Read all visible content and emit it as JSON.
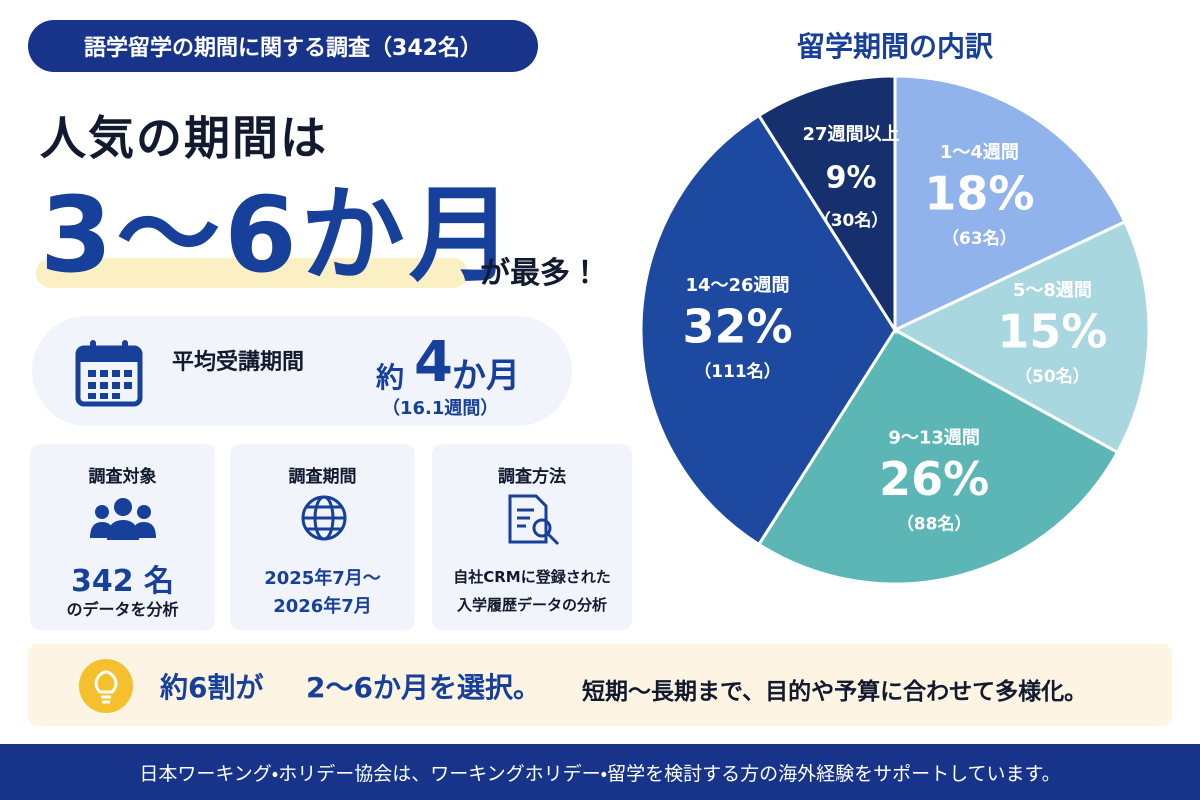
{
  "header": {
    "badge": "語学留学の期間に関する調査（342名）",
    "headline": "人気の期間は",
    "highlight": "3〜6か月",
    "highlight_suffix": "が最多！"
  },
  "average": {
    "label": "平均受講期間",
    "prefix": "約",
    "number": "4",
    "unit": "か月",
    "weeks": "（16.1週間）"
  },
  "cards": [
    {
      "title": "調査対象",
      "line1": "342 名",
      "line2": "のデータを分析"
    },
    {
      "title": "調査期間",
      "line1": "2025年7月〜",
      "line2": "2026年7月"
    },
    {
      "title": "調査方法",
      "line1": "自社CRMに登録された",
      "line2": "入学履歴データの分析"
    }
  ],
  "note": {
    "lead": "約6割が",
    "emphasis": "2〜6か月を選択。",
    "text": "短期〜長期まで、目的や予算に合わせて多様化。"
  },
  "footer": "日本ワーキング・ホリデー協会は、ワーキングホリデー・留学を検討する方の海外経験をサポートしています。",
  "chart_data": {
    "type": "pie",
    "title": "留学期間の内訳",
    "categories": [
      "1〜4週間",
      "5〜8週間",
      "9〜13週間",
      "14〜26週間",
      "27週間以上"
    ],
    "values": [
      18,
      15,
      26,
      32,
      9
    ],
    "value_labels": [
      "18%",
      "15%",
      "26%",
      "32%",
      "9%"
    ],
    "count_labels": [
      "（63名）",
      "（50名）",
      "（88名）",
      "（111名）",
      "（30名）"
    ],
    "colors": [
      "#8fb3ea",
      "#a9d7df",
      "#5db6b6",
      "#1e49a0",
      "#15306c"
    ]
  }
}
